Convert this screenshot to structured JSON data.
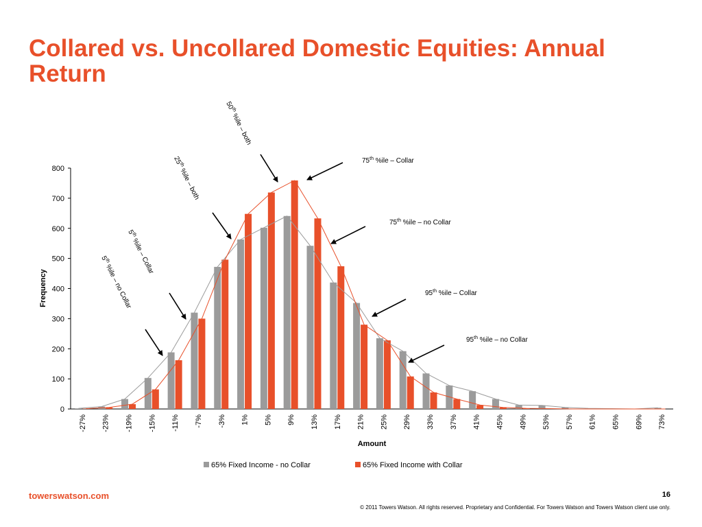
{
  "slide": {
    "title": "Collared vs. Uncollared Domestic Equities: Annual Return",
    "footer_brand": "towerswatson.com",
    "page_number": "16",
    "copyright": "© 2011 Towers Watson. All rights reserved. Proprietary and Confidential. For Towers Watson and Towers Watson client use only."
  },
  "colors": {
    "title": "#e8502a",
    "no_collar": "#9b9b9b",
    "collar": "#e8502a",
    "arrow": "#000000"
  },
  "chart_data": {
    "type": "bar",
    "xlabel": "Amount",
    "ylabel": "Frequency",
    "ylim": [
      0,
      800
    ],
    "yticks": [
      0,
      100,
      200,
      300,
      400,
      500,
      600,
      700,
      800
    ],
    "grid": false,
    "legend_placement": "bottom",
    "categories": [
      "-27%",
      "-23%",
      "-19%",
      "-15%",
      "-11%",
      "-7%",
      "-3%",
      "1%",
      "5%",
      "9%",
      "13%",
      "17%",
      "21%",
      "25%",
      "29%",
      "33%",
      "37%",
      "41%",
      "45%",
      "49%",
      "53%",
      "57%",
      "61%",
      "65%",
      "69%",
      "73%"
    ],
    "series": [
      {
        "name": "65% Fixed Income - no Collar",
        "values": [
          2,
          8,
          33,
          103,
          188,
          320,
          472,
          563,
          602,
          641,
          542,
          420,
          352,
          235,
          192,
          118,
          78,
          59,
          33,
          13,
          12,
          5,
          2,
          1,
          0,
          4
        ]
      },
      {
        "name": "65% Fixed Income with Collar",
        "values": [
          1,
          5,
          16,
          65,
          162,
          300,
          496,
          648,
          719,
          759,
          633,
          474,
          280,
          228,
          108,
          55,
          33,
          13,
          5,
          2,
          1,
          0,
          0,
          0,
          0,
          0
        ]
      }
    ],
    "annotations": [
      {
        "text_main": "50",
        "sup": "th",
        "text_rest": " %ile – both"
      },
      {
        "text_main": "25",
        "sup": "th",
        "text_rest": " %ile – both"
      },
      {
        "text_main": "5",
        "sup": "th",
        "text_rest": " %ile – Collar"
      },
      {
        "text_main": "5",
        "sup": "th",
        "text_rest": " %ile – no Collar"
      },
      {
        "text_main": "75",
        "sup": "th",
        "text_rest": " %ile – Collar"
      },
      {
        "text_main": "75",
        "sup": "th",
        "text_rest": " %ile – no Collar"
      },
      {
        "text_main": "95",
        "sup": "th",
        "text_rest": " %ile – Collar"
      },
      {
        "text_main": "95",
        "sup": "th",
        "text_rest": " %ile – no Collar"
      }
    ]
  }
}
